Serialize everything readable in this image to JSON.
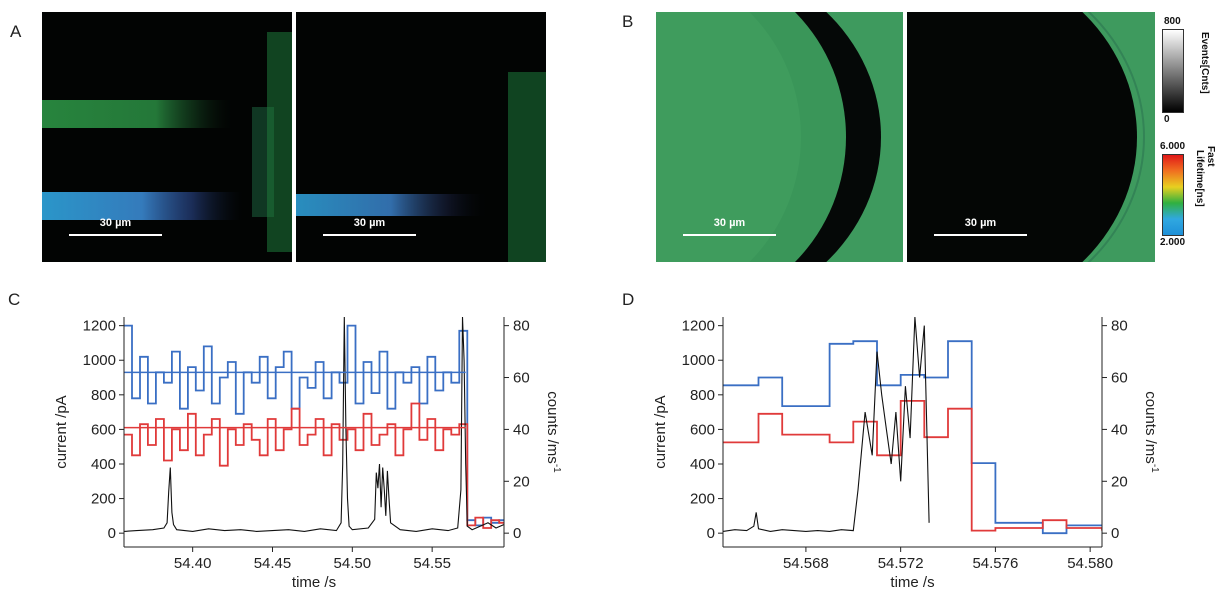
{
  "panels": {
    "A": "A",
    "B": "B",
    "C": "C",
    "D": "D"
  },
  "scale_bar": "30 µm",
  "colorbar_events": {
    "label": "Events[Cnts]",
    "max": "800",
    "min": "0"
  },
  "colorbar_lifetime": {
    "label_top": "Fast",
    "label": "Lifetime[ns]",
    "max": "6.000",
    "min": "2.000"
  },
  "colors": {
    "blue": "#3a6fc4",
    "red": "#e03a3a",
    "black": "#111111",
    "green": "#2fa84a",
    "cyan": "#38a8e0"
  },
  "chart_data": [
    {
      "panel": "C",
      "type": "line",
      "xlabel": "time /s",
      "ylabel": "current /pA",
      "y2label": "counts /ms",
      "y2label_sup": "-1",
      "xlim": [
        54.357,
        54.595
      ],
      "ylim": [
        -80,
        1250
      ],
      "y2lim": [
        -5.333,
        83.333
      ],
      "xticks": [
        "54.40",
        "54.45",
        "54.50",
        "54.55"
      ],
      "xtick_values": [
        54.4,
        54.45,
        54.5,
        54.55
      ],
      "yticks": [
        "0",
        "200",
        "400",
        "600",
        "800",
        "1000",
        "1200"
      ],
      "ytick_values": [
        0,
        200,
        400,
        600,
        800,
        1000,
        1200
      ],
      "y2ticks": [
        "0",
        "20",
        "40",
        "60",
        "80"
      ],
      "y2tick_values": [
        0,
        20,
        40,
        60,
        80
      ],
      "blue_mean": 930,
      "red_mean": 610,
      "series": [
        {
          "color": "blue",
          "axis": "right",
          "style": "step",
          "x": [
            54.357,
            54.362,
            54.367,
            54.372,
            54.377,
            54.382,
            54.387,
            54.392,
            54.397,
            54.402,
            54.407,
            54.412,
            54.417,
            54.422,
            54.427,
            54.432,
            54.437,
            54.442,
            54.447,
            54.452,
            54.457,
            54.462,
            54.467,
            54.472,
            54.477,
            54.482,
            54.487,
            54.492,
            54.497,
            54.502,
            54.507,
            54.512,
            54.517,
            54.522,
            54.527,
            54.532,
            54.537,
            54.542,
            54.547,
            54.552,
            54.557,
            54.562,
            54.567,
            54.572,
            54.577,
            54.582,
            54.587,
            54.592
          ],
          "values": [
            80,
            52,
            68,
            50,
            62,
            58,
            70,
            48,
            64,
            55,
            72,
            50,
            60,
            66,
            46,
            62,
            58,
            68,
            52,
            64,
            70,
            48,
            60,
            56,
            66,
            52,
            62,
            58,
            80,
            50,
            66,
            54,
            70,
            48,
            62,
            58,
            64,
            50,
            68,
            55,
            62,
            58,
            78,
            5,
            3,
            6,
            4,
            5
          ]
        },
        {
          "color": "red",
          "axis": "right",
          "style": "step",
          "x": [
            54.357,
            54.362,
            54.367,
            54.372,
            54.377,
            54.382,
            54.387,
            54.392,
            54.397,
            54.402,
            54.407,
            54.412,
            54.417,
            54.422,
            54.427,
            54.432,
            54.437,
            54.442,
            54.447,
            54.452,
            54.457,
            54.462,
            54.467,
            54.472,
            54.477,
            54.482,
            54.487,
            54.492,
            54.497,
            54.502,
            54.507,
            54.512,
            54.517,
            54.522,
            54.527,
            54.532,
            54.537,
            54.542,
            54.547,
            54.552,
            54.557,
            54.562,
            54.567,
            54.572,
            54.577,
            54.582,
            54.587,
            54.592
          ],
          "values": [
            38,
            30,
            42,
            34,
            44,
            28,
            40,
            32,
            46,
            30,
            38,
            44,
            26,
            40,
            34,
            42,
            36,
            30,
            44,
            32,
            40,
            48,
            34,
            38,
            44,
            30,
            42,
            36,
            40,
            32,
            46,
            34,
            38,
            42,
            30,
            40,
            50,
            36,
            44,
            32,
            40,
            38,
            42,
            3,
            6,
            2,
            5,
            4
          ]
        },
        {
          "color": "black",
          "axis": "left",
          "style": "line",
          "x": [
            54.357,
            54.365,
            54.375,
            54.382,
            54.384,
            54.385,
            54.386,
            54.387,
            54.388,
            54.39,
            54.4,
            54.41,
            54.42,
            54.43,
            54.44,
            54.45,
            54.46,
            54.47,
            54.48,
            54.49,
            54.493,
            54.494,
            54.495,
            54.496,
            54.497,
            54.498,
            54.5,
            54.51,
            54.514,
            54.515,
            54.516,
            54.517,
            54.518,
            54.519,
            54.52,
            54.521,
            54.522,
            54.523,
            54.524,
            54.53,
            54.54,
            54.55,
            54.56,
            54.566,
            54.568,
            54.569,
            54.57,
            54.571,
            54.572,
            54.575,
            54.58,
            54.585,
            54.59,
            54.595
          ],
          "values": [
            10,
            15,
            20,
            30,
            60,
            240,
            380,
            120,
            50,
            20,
            10,
            25,
            15,
            20,
            10,
            15,
            20,
            10,
            25,
            15,
            60,
            400,
            1250,
            600,
            200,
            40,
            20,
            30,
            80,
            350,
            260,
            400,
            150,
            380,
            250,
            100,
            360,
            200,
            60,
            20,
            10,
            25,
            15,
            30,
            250,
            1250,
            1000,
            400,
            40,
            20,
            40,
            60,
            30,
            50
          ]
        }
      ]
    },
    {
      "panel": "D",
      "type": "line",
      "xlabel": "time /s",
      "ylabel": "current /pA",
      "y2label": "counts /ms",
      "y2label_sup": "-1",
      "xlim": [
        54.5645,
        54.5805
      ],
      "ylim": [
        -80,
        1250
      ],
      "y2lim": [
        -5.333,
        83.333
      ],
      "xticks": [
        "54.568",
        "54.572",
        "54.576",
        "54.580"
      ],
      "xtick_values": [
        54.568,
        54.572,
        54.576,
        54.58
      ],
      "yticks": [
        "0",
        "200",
        "400",
        "600",
        "800",
        "1000",
        "1200"
      ],
      "ytick_values": [
        0,
        200,
        400,
        600,
        800,
        1000,
        1200
      ],
      "y2ticks": [
        "0",
        "20",
        "40",
        "60",
        "80"
      ],
      "y2tick_values": [
        0,
        20,
        40,
        60,
        80
      ],
      "series": [
        {
          "color": "blue",
          "axis": "right",
          "style": "step",
          "x": [
            54.5645,
            54.566,
            54.567,
            54.569,
            54.57,
            54.571,
            54.572,
            54.573,
            54.574,
            54.575,
            54.576,
            54.578,
            54.579,
            54.5805
          ],
          "values": [
            57,
            60,
            49,
            73,
            74,
            57,
            61,
            60,
            74,
            27,
            4,
            0,
            3,
            3
          ]
        },
        {
          "color": "red",
          "axis": "right",
          "style": "step",
          "x": [
            54.5645,
            54.566,
            54.567,
            54.569,
            54.57,
            54.571,
            54.572,
            54.573,
            54.574,
            54.575,
            54.576,
            54.578,
            54.579,
            54.5805
          ],
          "values": [
            35,
            46,
            38,
            35,
            43,
            30,
            51,
            37,
            48,
            1,
            2,
            5,
            2,
            1
          ]
        },
        {
          "color": "black",
          "axis": "left",
          "style": "line",
          "x": [
            54.5645,
            54.565,
            54.5655,
            54.5658,
            54.5659,
            54.566,
            54.5665,
            54.567,
            54.5675,
            54.568,
            54.5685,
            54.569,
            54.5695,
            54.57,
            54.5702,
            54.5705,
            54.5708,
            54.571,
            54.5712,
            54.5714,
            54.5716,
            54.5718,
            54.572,
            54.5722,
            54.5724,
            54.5726,
            54.5728,
            54.573,
            54.5732
          ],
          "values": [
            10,
            20,
            15,
            40,
            120,
            25,
            10,
            20,
            15,
            10,
            15,
            10,
            20,
            15,
            250,
            700,
            450,
            1050,
            800,
            600,
            400,
            700,
            300,
            850,
            550,
            1250,
            900,
            1200,
            60
          ]
        }
      ]
    }
  ]
}
